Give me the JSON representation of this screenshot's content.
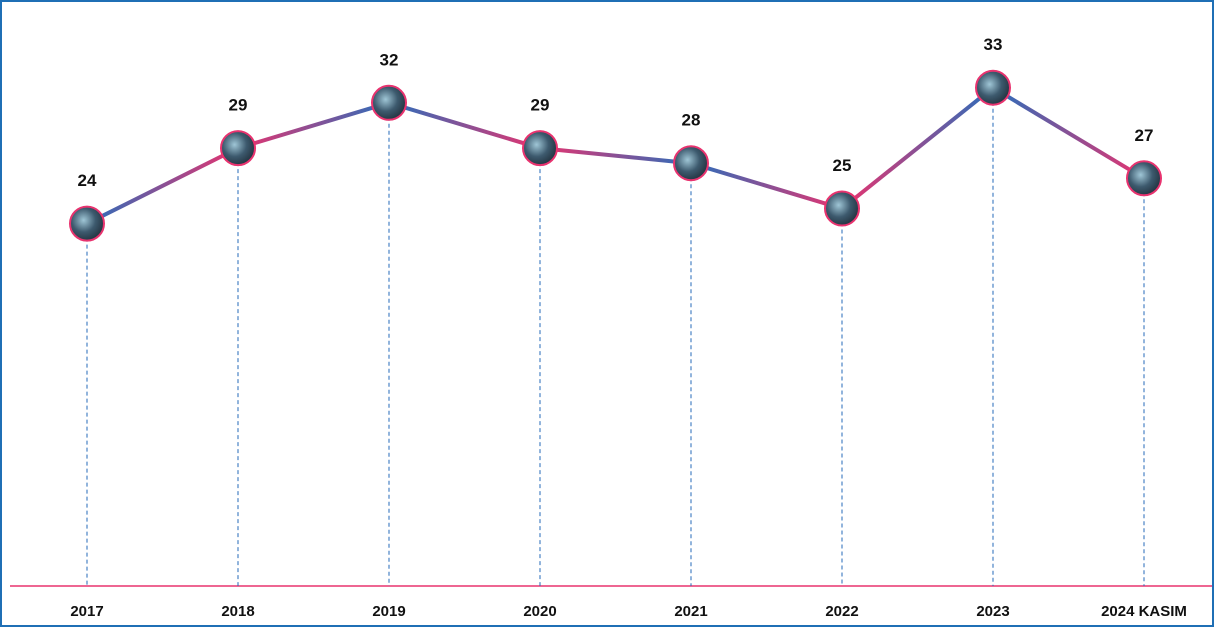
{
  "chart_data": {
    "type": "line",
    "categories": [
      "2017",
      "2018",
      "2019",
      "2020",
      "2021",
      "2022",
      "2023",
      "2024 KASIM"
    ],
    "values": [
      24,
      29,
      32,
      29,
      28,
      25,
      33,
      27
    ],
    "colors": [
      "#e8336f",
      "#2a6ebb"
    ]
  }
}
